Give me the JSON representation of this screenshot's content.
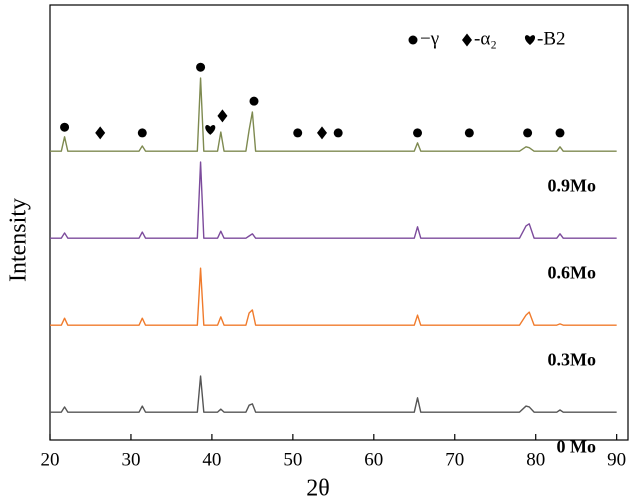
{
  "chart_data": {
    "type": "line",
    "xlabel": "2θ",
    "ylabel": "Intensity",
    "xlim": [
      20,
      91.4
    ],
    "xticks": [
      20,
      30,
      40,
      50,
      60,
      70,
      80,
      90
    ],
    "ylim": [
      0,
      100
    ],
    "x": [
      20,
      21.4,
      21.8,
      22.2,
      31.0,
      31.4,
      31.8,
      38.2,
      38.6,
      39.0,
      40.7,
      41.1,
      41.5,
      44.2,
      44.6,
      45.0,
      45.4,
      65.0,
      65.4,
      65.8,
      78.0,
      78.8,
      79.2,
      79.8,
      82.6,
      83.0,
      83.4,
      90
    ],
    "series": [
      {
        "name": "0.9Mo",
        "color": "#7e8a50",
        "values": [
          66.4,
          66.4,
          69.7,
          66.4,
          66.4,
          67.6,
          66.4,
          66.4,
          83.2,
          66.4,
          66.4,
          70.8,
          66.4,
          66.4,
          71.3,
          75.4,
          66.4,
          66.4,
          68.3,
          66.4,
          66.4,
          67.4,
          67.2,
          66.4,
          66.4,
          67.4,
          66.4,
          66.4
        ]
      },
      {
        "name": "0.6Mo",
        "color": "#7c4b9c",
        "values": [
          46.4,
          46.4,
          47.6,
          46.4,
          46.4,
          47.8,
          46.4,
          46.4,
          63.9,
          46.4,
          46.4,
          48.0,
          46.4,
          46.4,
          46.9,
          47.4,
          46.4,
          46.4,
          49.0,
          46.4,
          46.4,
          49.2,
          49.7,
          46.4,
          46.4,
          47.4,
          46.4,
          46.4
        ]
      },
      {
        "name": "0.3Mo",
        "color": "#f07b2c",
        "values": [
          26.4,
          26.4,
          28.0,
          26.4,
          26.4,
          28.0,
          26.4,
          26.4,
          39.5,
          26.4,
          26.4,
          28.3,
          26.4,
          26.4,
          29.2,
          29.9,
          26.4,
          26.4,
          28.7,
          26.4,
          26.4,
          28.7,
          29.4,
          26.4,
          26.4,
          26.7,
          26.4,
          26.4
        ]
      },
      {
        "name": "0 Mo",
        "color": "#555555",
        "values": [
          6.4,
          6.4,
          7.6,
          6.4,
          6.4,
          7.8,
          6.4,
          6.4,
          14.7,
          6.4,
          6.4,
          7.1,
          6.4,
          6.4,
          8.0,
          8.3,
          6.4,
          6.4,
          9.7,
          6.4,
          6.4,
          7.8,
          7.6,
          6.4,
          6.4,
          6.9,
          6.4,
          6.4
        ]
      }
    ],
    "phase_legend": [
      {
        "symbol": "circle",
        "label": "−γ"
      },
      {
        "symbol": "diamond",
        "label": "-α₂"
      },
      {
        "symbol": "heart",
        "label": "-B2"
      }
    ],
    "phase_markers": [
      {
        "symbol": "circle",
        "x": 21.8,
        "y": 71.9
      },
      {
        "symbol": "diamond",
        "x": 26.2,
        "y": 70.6
      },
      {
        "symbol": "circle",
        "x": 31.4,
        "y": 70.6
      },
      {
        "symbol": "circle",
        "x": 38.6,
        "y": 85.7
      },
      {
        "symbol": "heart",
        "x": 39.8,
        "y": 71.3
      },
      {
        "symbol": "diamond",
        "x": 41.3,
        "y": 74.5
      },
      {
        "symbol": "circle",
        "x": 45.2,
        "y": 77.9
      },
      {
        "symbol": "circle",
        "x": 50.6,
        "y": 70.6
      },
      {
        "symbol": "diamond",
        "x": 53.6,
        "y": 70.6
      },
      {
        "symbol": "circle",
        "x": 55.6,
        "y": 70.6
      },
      {
        "symbol": "circle",
        "x": 65.4,
        "y": 70.6
      },
      {
        "symbol": "circle",
        "x": 71.8,
        "y": 70.6
      },
      {
        "symbol": "circle",
        "x": 79.0,
        "y": 70.6
      },
      {
        "symbol": "circle",
        "x": 83.0,
        "y": 70.6
      }
    ]
  }
}
